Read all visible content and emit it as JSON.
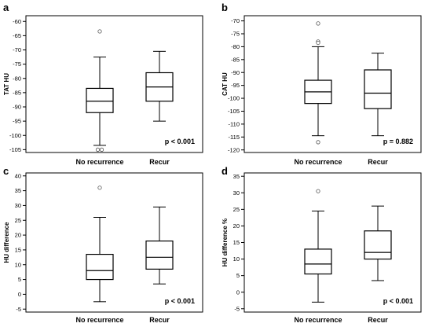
{
  "chart_data": [
    {
      "type": "box",
      "panel": "a",
      "ylabel": "TAT HU",
      "pvalue": "p < 0.001",
      "ylim": [
        -106,
        -58
      ],
      "yticks": [
        -105,
        -100,
        -95,
        -90,
        -85,
        -80,
        -75,
        -70,
        -65,
        -60
      ],
      "categories": [
        "No recurrence",
        "Recur"
      ],
      "boxes": [
        {
          "whisker_low": -103.5,
          "q1": -92,
          "median": -88,
          "q3": -83.5,
          "whisker_high": -72.5,
          "outliers": [
            -63.5,
            -105,
            -105
          ]
        },
        {
          "whisker_low": -95,
          "q1": -88,
          "median": -83,
          "q3": -78,
          "whisker_high": -70.5,
          "outliers": []
        }
      ]
    },
    {
      "type": "box",
      "panel": "b",
      "ylabel": "CAT HU",
      "pvalue": "p = 0.882",
      "ylim": [
        -121,
        -68
      ],
      "yticks": [
        -120,
        -115,
        -110,
        -105,
        -100,
        -95,
        -90,
        -85,
        -80,
        -75,
        -70
      ],
      "categories": [
        "No recurrence",
        "Recur"
      ],
      "boxes": [
        {
          "whisker_low": -114.5,
          "q1": -102,
          "median": -97.5,
          "q3": -93,
          "whisker_high": -80,
          "outliers": [
            -71,
            -78,
            -78.5,
            -117
          ]
        },
        {
          "whisker_low": -114.5,
          "q1": -104,
          "median": -98,
          "q3": -89,
          "whisker_high": -82.5,
          "outliers": []
        }
      ]
    },
    {
      "type": "box",
      "panel": "c",
      "ylabel": "HU difference",
      "pvalue": "p < 0.001",
      "ylim": [
        -6,
        41
      ],
      "yticks": [
        -5,
        0,
        5,
        10,
        15,
        20,
        25,
        30,
        35,
        40
      ],
      "categories": [
        "No recurrence",
        "Recur"
      ],
      "boxes": [
        {
          "whisker_low": -2.5,
          "q1": 5,
          "median": 8,
          "q3": 13.5,
          "whisker_high": 26,
          "outliers": [
            36
          ]
        },
        {
          "whisker_low": 3.5,
          "q1": 8.5,
          "median": 12.5,
          "q3": 18,
          "whisker_high": 29.5,
          "outliers": []
        }
      ]
    },
    {
      "type": "box",
      "panel": "d",
      "ylabel": "HU difference %",
      "pvalue": "p < 0.001",
      "ylim": [
        -6,
        36
      ],
      "yticks": [
        -5,
        0,
        5,
        10,
        15,
        20,
        25,
        30,
        35
      ],
      "categories": [
        "No recurrence",
        "Recur"
      ],
      "boxes": [
        {
          "whisker_low": -3,
          "q1": 5.5,
          "median": 8.5,
          "q3": 13,
          "whisker_high": 24.5,
          "outliers": [
            30.5
          ]
        },
        {
          "whisker_low": 3.5,
          "q1": 10,
          "median": 12,
          "q3": 18.5,
          "whisker_high": 26,
          "outliers": []
        }
      ]
    }
  ]
}
